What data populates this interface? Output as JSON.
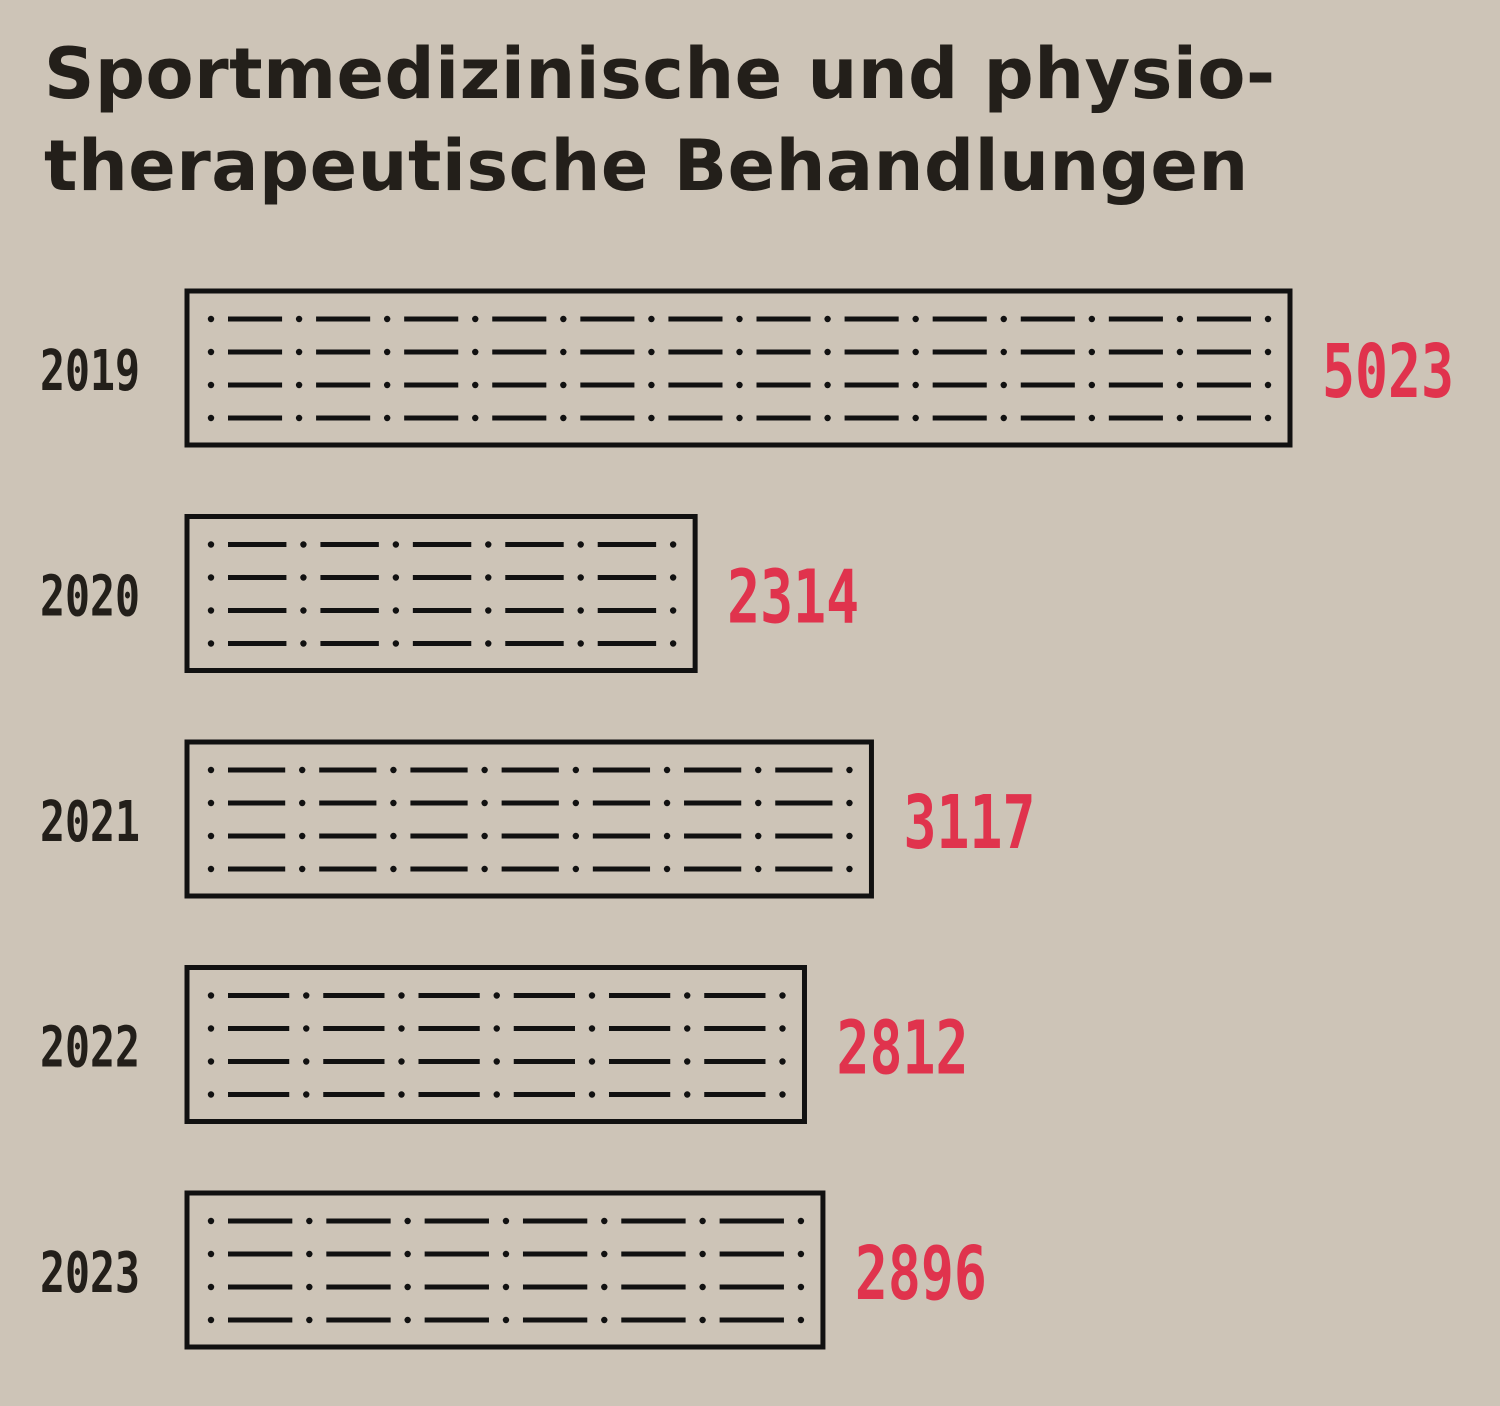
{
  "title": "Sportmedizinische und physio-\ntherapeutische Behandlungen",
  "colors": {
    "background": "#cdc4b7",
    "text": "#231f1a",
    "value": "#e0334d",
    "bar_stroke": "#111111"
  },
  "chart_data": {
    "type": "bar",
    "orientation": "horizontal",
    "title": "Sportmedizinische und physio-\ntherapeutische Behandlungen",
    "categories": [
      "2019",
      "2020",
      "2021",
      "2022",
      "2023"
    ],
    "values": [
      5023,
      2314,
      3117,
      2812,
      2896
    ],
    "value_labels": [
      "5023",
      "2314",
      "3117",
      "2812",
      "2896"
    ],
    "xlim": [
      0,
      5023
    ],
    "grid": false,
    "legend": "none",
    "bar_pattern": "dash-dot"
  }
}
